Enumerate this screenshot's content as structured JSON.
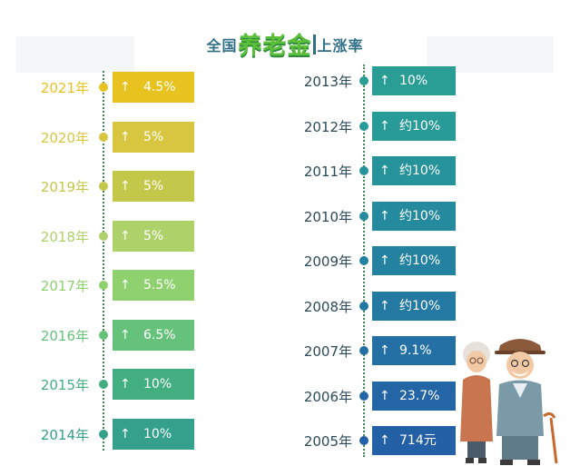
{
  "title": {
    "prefix": "全国",
    "highlight": "养老金",
    "suffix": "上涨率"
  },
  "chart_data": {
    "type": "bar",
    "title": "全国养老金上涨率",
    "arrow_glyph": "↑",
    "left_column": [
      {
        "year": "2021年",
        "label": "4.5%",
        "value": 4.5,
        "color": "#e8c320"
      },
      {
        "year": "2020年",
        "label": "5%",
        "value": 5,
        "color": "#d8c640"
      },
      {
        "year": "2019年",
        "label": "5%",
        "value": 5,
        "color": "#c4c84a"
      },
      {
        "year": "2018年",
        "label": "5%",
        "value": 5,
        "color": "#aed16a"
      },
      {
        "year": "2017年",
        "label": "5.5%",
        "value": 5.5,
        "color": "#8fd16e"
      },
      {
        "year": "2016年",
        "label": "6.5%",
        "value": 6.5,
        "color": "#66c27a"
      },
      {
        "year": "2015年",
        "label": "10%",
        "value": 10,
        "color": "#43ae7f"
      },
      {
        "year": "2014年",
        "label": "10%",
        "value": 10,
        "color": "#35a08c"
      }
    ],
    "right_column": [
      {
        "year": "2013年",
        "label": "10%",
        "value": 10,
        "color": "#2a9e95"
      },
      {
        "year": "2012年",
        "label": "约10%",
        "value": 10,
        "color": "#289a98"
      },
      {
        "year": "2011年",
        "label": "约10%",
        "value": 10,
        "color": "#26929a"
      },
      {
        "year": "2010年",
        "label": "约10%",
        "value": 10,
        "color": "#258a9d"
      },
      {
        "year": "2009年",
        "label": "约10%",
        "value": 10,
        "color": "#2481a0"
      },
      {
        "year": "2008年",
        "label": "约10%",
        "value": 10,
        "color": "#2479a2"
      },
      {
        "year": "2007年",
        "label": "9.1%",
        "value": 9.1,
        "color": "#2470a4"
      },
      {
        "year": "2006年",
        "label": "23.7%",
        "value": 23.7,
        "color": "#2466a5"
      },
      {
        "year": "2005年",
        "label": "714元",
        "value": 714,
        "color": "#2460a6"
      }
    ]
  }
}
